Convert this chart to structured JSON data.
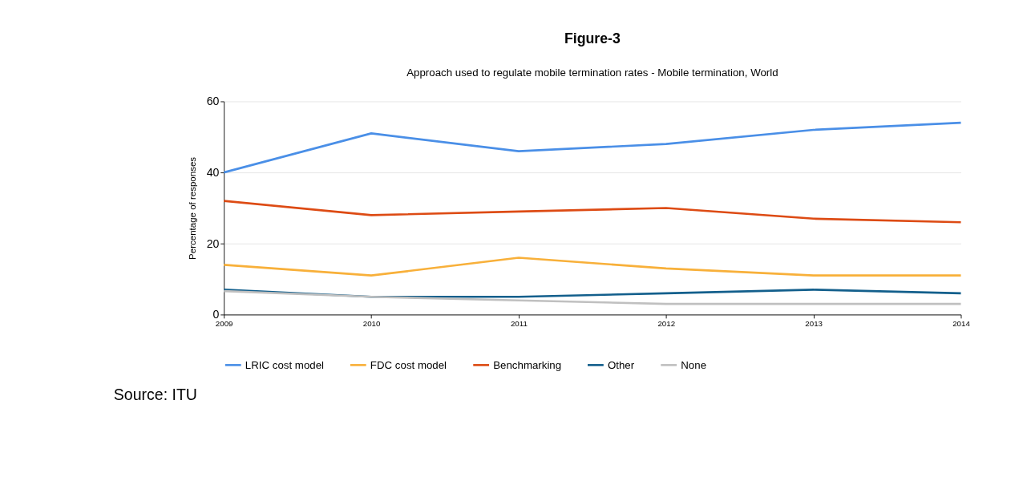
{
  "chart_data": {
    "type": "line",
    "title": "Figure-3",
    "subtitle": "Approach used to regulate mobile termination rates - Mobile termination, World",
    "ylabel": "Percentage of responses",
    "x": [
      2009,
      2010,
      2011,
      2012,
      2013,
      2014
    ],
    "series": [
      {
        "name": "LRIC cost model",
        "color": "#4a8fe7",
        "values": [
          40,
          51,
          46,
          48,
          52,
          54
        ]
      },
      {
        "name": "FDC cost model",
        "color": "#f8b03a",
        "values": [
          14,
          11,
          16,
          13,
          11,
          11
        ]
      },
      {
        "name": "Benchmarking",
        "color": "#dd4b14",
        "values": [
          32,
          28,
          29,
          30,
          27,
          26
        ]
      },
      {
        "name": "Other",
        "color": "#135f8c",
        "values": [
          7,
          5,
          5,
          6,
          7,
          6
        ]
      },
      {
        "name": "None",
        "color": "#c0c0c0",
        "values": [
          6.6,
          5,
          4,
          3,
          3,
          3
        ]
      }
    ],
    "xlim": [
      2009,
      2014
    ],
    "xticks": [
      2009,
      2010,
      2011,
      2012,
      2013,
      2014
    ],
    "ylim": [
      0,
      60
    ],
    "yticks": [
      0,
      20,
      40,
      60
    ],
    "grid": "y",
    "legend": "bottom",
    "marker": "none",
    "line_style": "solid",
    "annotations": [
      "Source:  ITU"
    ]
  }
}
